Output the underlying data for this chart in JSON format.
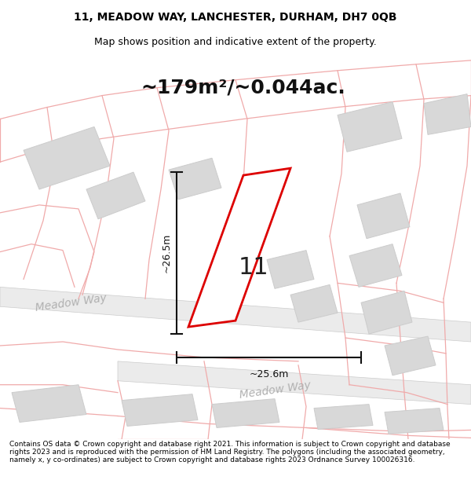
{
  "title_line1": "11, MEADOW WAY, LANCHESTER, DURHAM, DH7 0QB",
  "title_line2": "Map shows position and indicative extent of the property.",
  "area_text": "~179m²/~0.044ac.",
  "property_number": "11",
  "dim_vertical": "~26.5m",
  "dim_horizontal": "~25.6m",
  "footer_text": "Contains OS data © Crown copyright and database right 2021. This information is subject to Crown copyright and database rights 2023 and is reproduced with the permission of HM Land Registry. The polygons (including the associated geometry, namely x, y co-ordinates) are subject to Crown copyright and database rights 2023 Ordnance Survey 100026316.",
  "bg_color": "#ffffff",
  "map_bg": "#f8f8f8",
  "plot_outline_color": "#dd0000",
  "plot_fill_color": "#ffffff",
  "building_color": "#d8d8d8",
  "building_edge": "#cccccc",
  "grid_line_color": "#f0aaaa",
  "dim_line_color": "#111111",
  "street_label_color": "#b0b0b0",
  "road_fill": "#ebebeb",
  "road_edge": "#cccccc",
  "title_fontsize": 10,
  "subtitle_fontsize": 9,
  "area_fontsize": 18,
  "number_fontsize": 22,
  "dim_fontsize": 9,
  "footer_fontsize": 6.5,
  "street_fontsize": 10
}
